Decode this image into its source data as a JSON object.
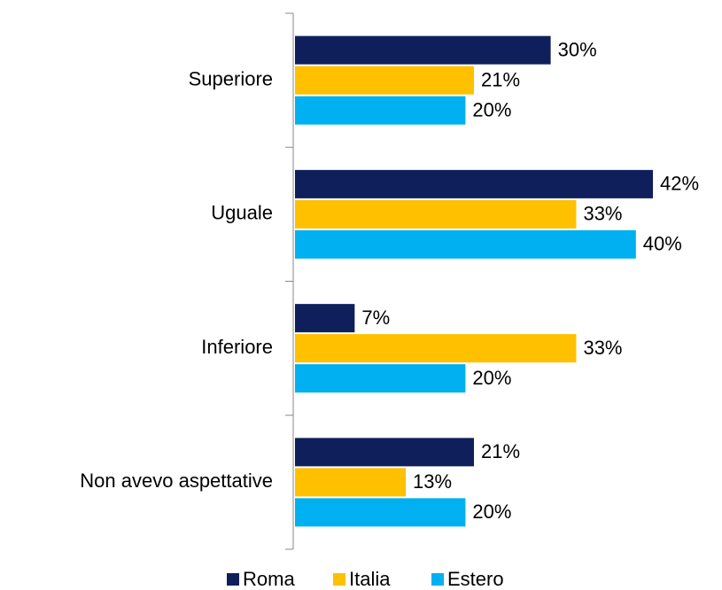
{
  "chart_data": {
    "type": "barh",
    "categories": [
      "Superiore",
      "Uguale",
      "Inferiore",
      "Non avevo aspettative"
    ],
    "series": [
      {
        "name": "Roma",
        "color": "#0f1f5c",
        "values": [
          30,
          42,
          7,
          21
        ],
        "value_labels": [
          "30%",
          "42%",
          "7%",
          "21%"
        ]
      },
      {
        "name": "Italia",
        "color": "#ffc000",
        "values": [
          21,
          33,
          33,
          13
        ],
        "value_labels": [
          "21%",
          "33%",
          "33%",
          "13%"
        ]
      },
      {
        "name": "Estero",
        "color": "#00b0f0",
        "values": [
          20,
          40,
          20,
          20
        ],
        "value_labels": [
          "20%",
          "40%",
          "20%",
          "20%"
        ]
      }
    ],
    "xlim": [
      0,
      50
    ],
    "legend": "bottom"
  }
}
